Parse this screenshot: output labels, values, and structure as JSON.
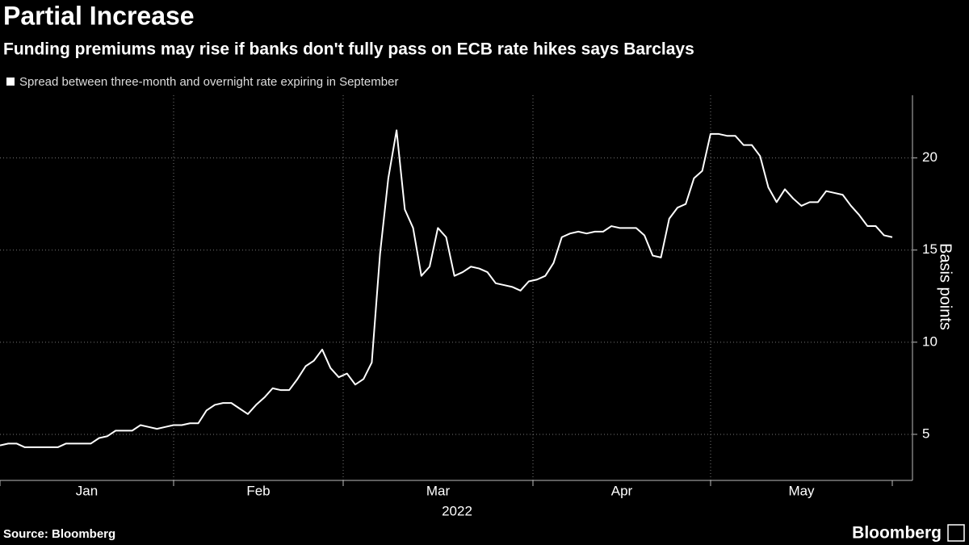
{
  "chart_data": {
    "type": "line",
    "title": "Partial Increase",
    "subtitle": "Funding premiums may rise if banks don't fully pass on ECB rate hikes says Barclays",
    "y_label": "Basis points",
    "x_labels": [
      "Jan",
      "Feb",
      "Mar",
      "Apr",
      "May"
    ],
    "x_year": "2022",
    "source": "Source: Bloomberg",
    "brand": "Bloomberg",
    "ylim": [
      2.5,
      23.4
    ],
    "yticks": [
      5,
      10,
      15,
      20
    ],
    "grid": true,
    "series": [
      {
        "name": "Spread between three-month and overnight rate expiring in September",
        "color": "#ffffff",
        "values": [
          4.4,
          4.5,
          4.5,
          4.3,
          4.3,
          4.3,
          4.3,
          4.3,
          4.5,
          4.5,
          4.5,
          4.5,
          4.8,
          4.9,
          5.2,
          5.2,
          5.2,
          5.5,
          5.4,
          5.3,
          5.4,
          5.5,
          5.5,
          5.6,
          5.6,
          6.3,
          6.6,
          6.7,
          6.7,
          6.4,
          6.1,
          6.6,
          7.0,
          7.5,
          7.4,
          7.4,
          8.0,
          8.7,
          9.0,
          9.6,
          8.6,
          8.1,
          8.3,
          7.7,
          8.0,
          8.9,
          14.8,
          18.9,
          21.5,
          17.2,
          16.2,
          13.6,
          14.1,
          16.2,
          15.7,
          13.6,
          13.8,
          14.1,
          14.0,
          13.8,
          13.2,
          13.1,
          13.0,
          12.8,
          13.3,
          13.4,
          13.6,
          14.3,
          15.7,
          15.9,
          16.0,
          15.9,
          16.0,
          16.0,
          16.3,
          16.2,
          16.2,
          16.2,
          15.8,
          14.7,
          14.6,
          16.7,
          17.3,
          17.5,
          18.9,
          19.3,
          21.3,
          21.3,
          21.2,
          21.2,
          20.7,
          20.7,
          20.1,
          18.4,
          17.6,
          18.3,
          17.8,
          17.4,
          17.6,
          17.6,
          18.2,
          18.1,
          18.0,
          17.4,
          16.9,
          16.3,
          16.3,
          15.8,
          15.7
        ]
      }
    ]
  }
}
